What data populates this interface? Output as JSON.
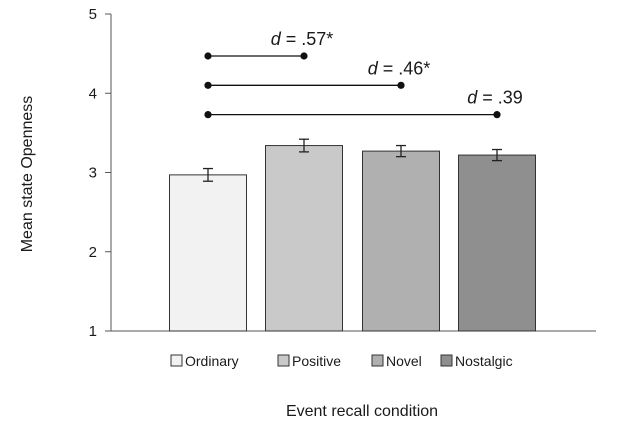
{
  "chart_data": {
    "type": "bar",
    "title": "",
    "xlabel": "Event recall condition",
    "ylabel": "Mean state Openness",
    "ylim": [
      1,
      5
    ],
    "yticks": [
      "1",
      "2",
      "3",
      "4",
      "5"
    ],
    "grid": false,
    "legend_position": "bottom",
    "categories": [
      "Ordinary",
      "Positive",
      "Novel",
      "Nostalgic"
    ],
    "values": [
      2.97,
      3.34,
      3.27,
      3.22
    ],
    "errors": [
      0.08,
      0.08,
      0.07,
      0.07
    ],
    "colors": [
      "#f2f2f2",
      "#c9c9c9",
      "#b0b0b0",
      "#8f8f8f"
    ],
    "comparisons": [
      {
        "from": "Ordinary",
        "to": "Positive",
        "d_symbol": "d",
        "d_value": " = .57*",
        "y": 4.47
      },
      {
        "from": "Ordinary",
        "to": "Novel",
        "d_symbol": "d",
        "d_value": " = .46*",
        "y": 4.1
      },
      {
        "from": "Ordinary",
        "to": "Nostalgic",
        "d_symbol": "d",
        "d_value": " = .39",
        "y": 3.73
      }
    ]
  }
}
